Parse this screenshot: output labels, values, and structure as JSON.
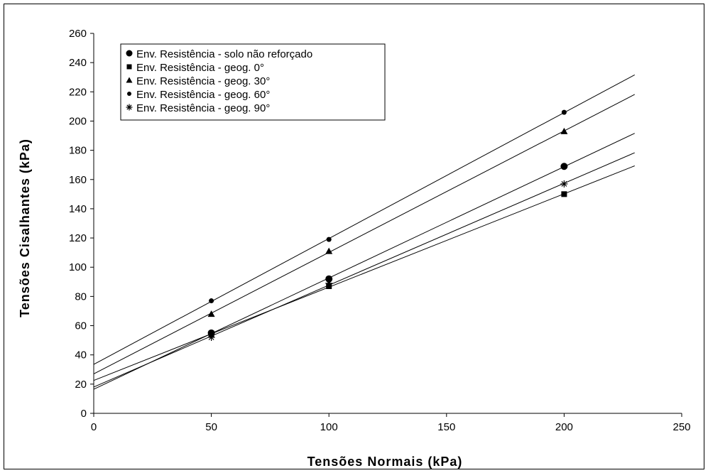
{
  "chart_data": {
    "type": "scatter",
    "xlabel": "Tensões Normais (kPa)",
    "ylabel": "Tensões Cisalhantes (kPa)",
    "xlim": [
      0,
      250
    ],
    "ylim": [
      0,
      260
    ],
    "xticks": [
      "0",
      "50",
      "100",
      "150",
      "200",
      "250"
    ],
    "yticks": [
      "0",
      "20",
      "40",
      "60",
      "80",
      "100",
      "120",
      "140",
      "160",
      "180",
      "200",
      "220",
      "240",
      "260"
    ],
    "grid": false,
    "legend_position": "top-left",
    "trendlines": true,
    "series": [
      {
        "name": "Env. Resistência - solo não reforçado",
        "marker": "circle",
        "x": [
          50,
          100,
          200
        ],
        "y": [
          55,
          92,
          169
        ]
      },
      {
        "name": "Env. Resistência - geog. 0°",
        "marker": "square",
        "x": [
          50,
          100,
          200
        ],
        "y": [
          54,
          87,
          150
        ]
      },
      {
        "name": "Env. Resistência - geog. 30°",
        "marker": "triangle",
        "x": [
          50,
          100,
          200
        ],
        "y": [
          68,
          111,
          193
        ]
      },
      {
        "name": "Env. Resistência - geog. 60°",
        "marker": "dot",
        "x": [
          50,
          100,
          200
        ],
        "y": [
          77,
          119,
          206
        ]
      },
      {
        "name": "Env. Resistência - geog. 90°",
        "marker": "star",
        "x": [
          50,
          100,
          200
        ],
        "y": [
          52,
          89,
          157
        ]
      }
    ]
  }
}
